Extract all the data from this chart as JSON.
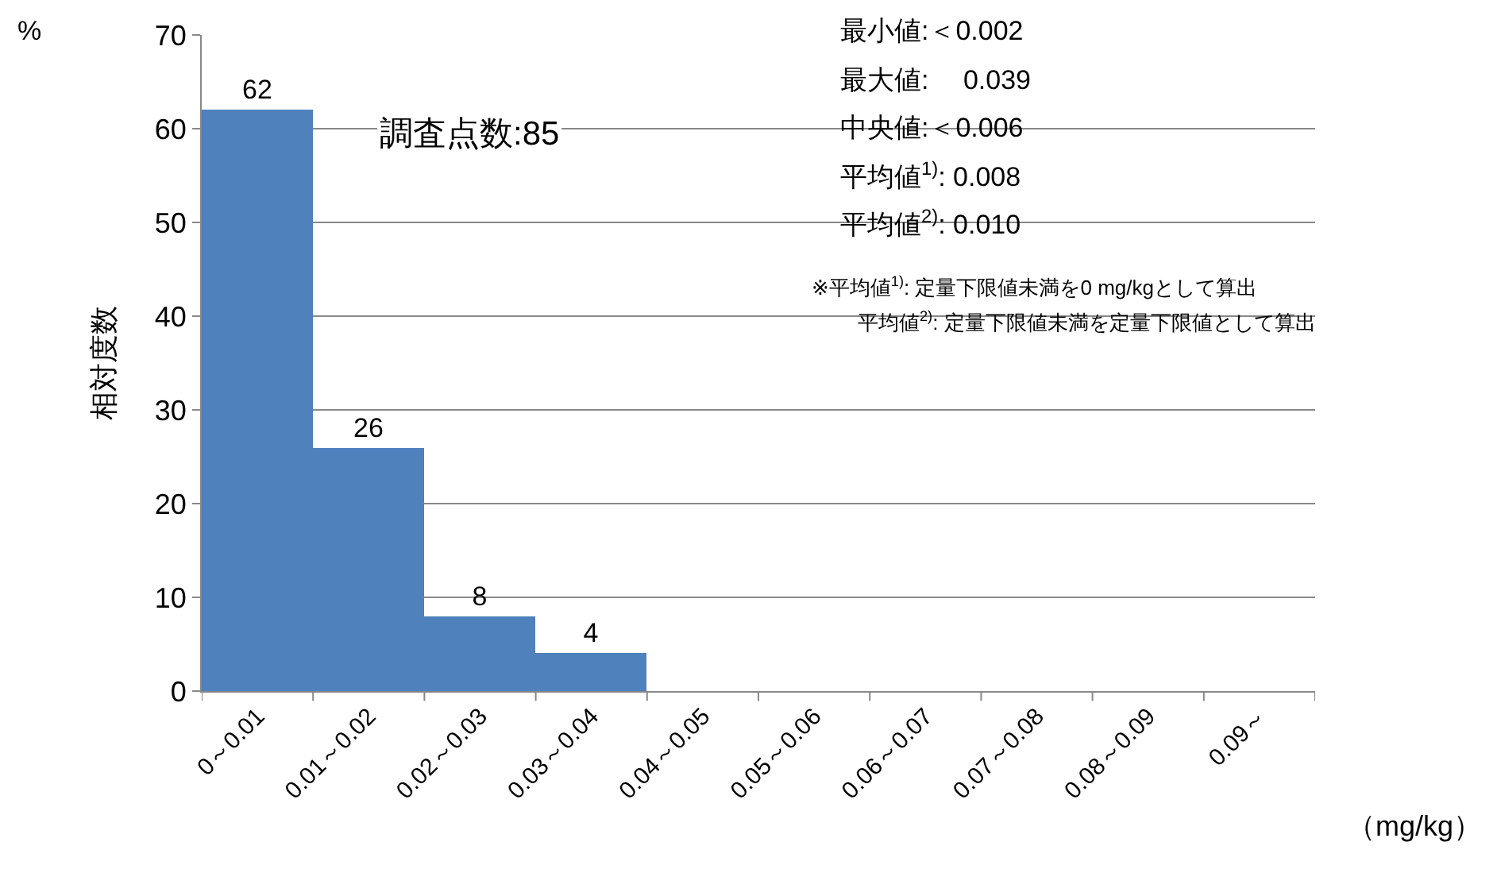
{
  "chart_data": {
    "type": "bar",
    "categories": [
      "0～0.01",
      "0.01～0.02",
      "0.02～0.03",
      "0.03～0.04",
      "0.04～0.05",
      "0.05～0.06",
      "0.06～0.07",
      "0.07～0.08",
      "0.08～0.09",
      "0.09～"
    ],
    "values": [
      62,
      26,
      8,
      4,
      0,
      0,
      0,
      0,
      0,
      0
    ],
    "value_labels": [
      "62",
      "26",
      "8",
      "4",
      null,
      null,
      null,
      null,
      null,
      null
    ],
    "color": "#4f81bd",
    "ylabel": "相対度数",
    "xlabel": "（mg/kg）",
    "ylim": [
      0,
      70
    ],
    "yticks": [
      0,
      10,
      20,
      30,
      40,
      50,
      60,
      70
    ],
    "grid": "y",
    "annotations": [
      "%",
      "調査点数:85",
      "最小値:＜0.002",
      "最大値:　 0.039",
      "中央値:＜0.006",
      "平均値$^{1)}$: 0.008",
      "平均値$^{2)}$: 0.010",
      "※平均値$^{1)}$: 定量下限値未満を0 mg/kgとして算出",
      "平均値$^{2)}$: 定量下限値未満を定量下限値として算出"
    ]
  }
}
